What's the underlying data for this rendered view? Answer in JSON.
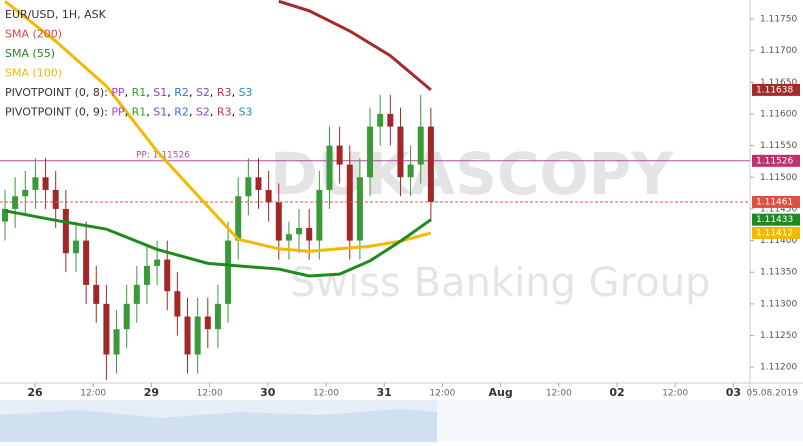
{
  "chart_data": {
    "type": "candlestick",
    "legend": [
      {
        "label": "EUR/USD, 1H, ASK",
        "color": "#333333"
      },
      {
        "label": "SMA (200)",
        "color": "#e0483c"
      },
      {
        "label": "SMA (55)",
        "color": "#1f8a1f"
      },
      {
        "label": "SMA (100)",
        "color": "#f5b800"
      }
    ],
    "pivot_rows": [
      {
        "label": "PIVOTPOINT (0, 8):",
        "items": [
          "PP",
          "R1",
          "S1",
          "R2",
          "S2",
          "R3",
          "S3"
        ]
      },
      {
        "label": "PIVOTPOINT (0, 9):",
        "items": [
          "PP",
          "R1",
          "S1",
          "R2",
          "S2",
          "R3",
          "S3"
        ]
      }
    ],
    "pivot_colors": [
      "#b040d0",
      "#2a9d2a",
      "#9040c0",
      "#3a6fd8",
      "#9040c0",
      "#c03060",
      "#2090c0"
    ],
    "watermark": [
      "DUKASCOPY",
      "Swiss Banking Group"
    ],
    "x_labels": [
      "26",
      "12:00",
      "29",
      "12:00",
      "30",
      "12:00",
      "31",
      "12:00",
      "Aug",
      "12:00",
      "02",
      "12:00",
      "03"
    ],
    "date_label": "05.08.2019",
    "ylim": [
      1.1178,
      1.11175
    ],
    "yticks": [
      {
        "value": 1.1175,
        "label": "1.11750"
      },
      {
        "value": 1.117,
        "label": "1.11700"
      },
      {
        "value": 1.1165,
        "label": "1.11650"
      },
      {
        "value": 1.116,
        "label": "1.11600"
      },
      {
        "value": 1.1155,
        "label": "1.11550"
      },
      {
        "value": 1.115,
        "label": "1.11500"
      },
      {
        "value": 1.1145,
        "label": "1.11450"
      },
      {
        "value": 1.114,
        "label": "1.11400"
      },
      {
        "value": 1.1135,
        "label": "1.11350"
      },
      {
        "value": 1.113,
        "label": "1.11300"
      },
      {
        "value": 1.1125,
        "label": "1.11250"
      },
      {
        "value": 1.112,
        "label": "1.11200"
      }
    ],
    "up_color": "#3a9a3a",
    "down_color": "#a02828",
    "open": [
      1.1143,
      1.1145,
      1.1147,
      1.1148,
      1.115,
      1.1148,
      1.1145,
      1.1138,
      1.114,
      1.1133,
      1.113,
      1.1122,
      1.1126,
      1.113,
      1.1133,
      1.1136,
      1.1137,
      1.1132,
      1.1128,
      1.1122,
      1.1128,
      1.1126,
      1.113,
      1.114,
      1.1147,
      1.115,
      1.1148,
      1.1146,
      1.114,
      1.1141,
      1.1142,
      1.114,
      1.1148,
      1.1155,
      1.1152,
      1.114,
      1.115,
      1.1158,
      1.116,
      1.1158,
      1.115,
      1.1152,
      1.1158
    ],
    "high": [
      1.1148,
      1.115,
      1.1151,
      1.1153,
      1.1153,
      1.1151,
      1.1148,
      1.1143,
      1.1143,
      1.1136,
      1.1133,
      1.1129,
      1.1133,
      1.1136,
      1.1139,
      1.114,
      1.114,
      1.1135,
      1.1131,
      1.1131,
      1.1131,
      1.1133,
      1.1143,
      1.115,
      1.1153,
      1.1153,
      1.1151,
      1.1149,
      1.1143,
      1.1145,
      1.1145,
      1.1151,
      1.1158,
      1.1158,
      1.1155,
      1.1153,
      1.1161,
      1.1163,
      1.1163,
      1.1161,
      1.1155,
      1.1163,
      1.1161
    ],
    "low": [
      1.114,
      1.1142,
      1.1144,
      1.1145,
      1.1145,
      1.1142,
      1.1135,
      1.1135,
      1.113,
      1.1127,
      1.1118,
      1.1119,
      1.1123,
      1.1127,
      1.113,
      1.1133,
      1.1129,
      1.1125,
      1.1119,
      1.1119,
      1.1123,
      1.1123,
      1.1127,
      1.1137,
      1.1144,
      1.1145,
      1.1143,
      1.1137,
      1.1137,
      1.1138,
      1.1137,
      1.1137,
      1.1145,
      1.1149,
      1.1137,
      1.1137,
      1.1147,
      1.1155,
      1.1155,
      1.1147,
      1.1147,
      1.1149,
      1.1143
    ],
    "close": [
      1.1145,
      1.1147,
      1.1148,
      1.115,
      1.1148,
      1.1145,
      1.1138,
      1.114,
      1.1133,
      1.113,
      1.1122,
      1.1126,
      1.113,
      1.1133,
      1.1136,
      1.1137,
      1.1132,
      1.1128,
      1.1122,
      1.1128,
      1.1126,
      1.113,
      1.114,
      1.1147,
      1.115,
      1.1148,
      1.1146,
      1.114,
      1.1141,
      1.1142,
      1.114,
      1.1148,
      1.1155,
      1.1152,
      1.114,
      1.115,
      1.1158,
      1.116,
      1.1158,
      1.115,
      1.1152,
      1.1158,
      1.11461
    ],
    "series": [
      {
        "name": "SMA (200)",
        "color": "#a52a2a",
        "x": [
          27,
          30,
          34,
          38,
          42
        ],
        "values": [
          1.11778,
          1.11763,
          1.11731,
          1.11692,
          1.11638
        ]
      },
      {
        "name": "SMA (100)",
        "color": "#f5b800",
        "x": [
          0,
          5,
          10,
          15,
          20,
          23,
          27,
          30,
          33,
          36,
          39,
          42
        ],
        "values": [
          1.11778,
          1.11715,
          1.11644,
          1.11541,
          1.11454,
          1.11402,
          1.11387,
          1.11383,
          1.11387,
          1.11391,
          1.11399,
          1.11412
        ]
      },
      {
        "name": "SMA (55)",
        "color": "#1f8a1f",
        "x": [
          0,
          5,
          10,
          15,
          20,
          23,
          27,
          30,
          33,
          36,
          39,
          42
        ],
        "values": [
          1.11447,
          1.11432,
          1.11418,
          1.11386,
          1.11364,
          1.1136,
          1.11355,
          1.11344,
          1.11347,
          1.11368,
          1.11399,
          1.11433
        ]
      }
    ],
    "pivot": {
      "value": 1.11526,
      "label": "PP: 1.11526",
      "color": "#b0509a"
    },
    "price_tags": [
      {
        "value": 1.11638,
        "label": "1.11638",
        "color": "#a52a2a"
      },
      {
        "value": 1.11526,
        "label": "1.11526",
        "color": "#c0306a"
      },
      {
        "value": 1.11461,
        "label": "1.11461",
        "color": "#e05040"
      },
      {
        "value": 1.11433,
        "label": "1.11433",
        "color": "#1f8a1f"
      },
      {
        "value": 1.11412,
        "label": "1.11412",
        "color": "#f5b800"
      }
    ]
  }
}
